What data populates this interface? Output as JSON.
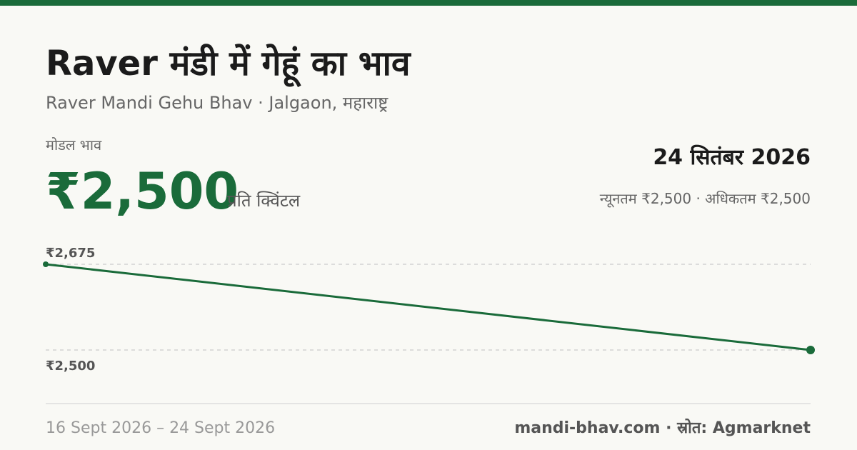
{
  "header": {
    "title": "Raver मंडी में गेहूं का भाव",
    "subtitle": "Raver Mandi Gehu Bhav · Jalgaon, महाराष्ट्र"
  },
  "modal": {
    "label": "मोडल भाव",
    "price": "₹2,500",
    "unit": "प्रति क्विंटल"
  },
  "date": "24 सितंबर 2026",
  "range": "न्यूनतम ₹2,500 · अधिकतम ₹2,500",
  "chart_data": {
    "type": "line",
    "x": [
      "16 Sept 2026",
      "24 Sept 2026"
    ],
    "values": [
      2675,
      2500
    ],
    "color": "#1a6b3a",
    "ylim": [
      2500,
      2675
    ],
    "yticks": [
      {
        "value": 2675,
        "label": "₹2,675"
      },
      {
        "value": 2500,
        "label": "₹2,500"
      }
    ],
    "grid": true
  },
  "footer": {
    "range_separator": "–",
    "source": "mandi-bhav.com · स्रोत: Agmarknet"
  }
}
